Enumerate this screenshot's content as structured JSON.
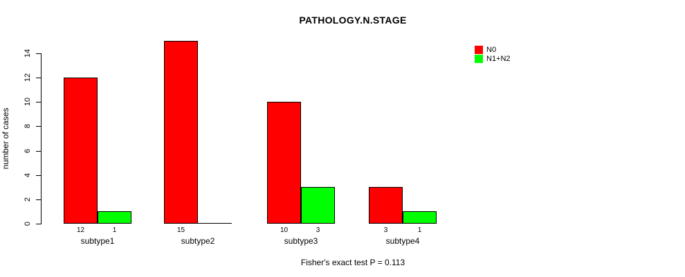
{
  "title": "PATHOLOGY.N.STAGE",
  "ylabel": "number of cases",
  "footnote": "Fisher's exact test P = 0.113",
  "chart_data": {
    "type": "bar",
    "grouped": true,
    "title": "PATHOLOGY.N.STAGE",
    "xlabel": "",
    "ylabel": "number of cases",
    "categories": [
      "subtype1",
      "subtype2",
      "subtype3",
      "subtype4"
    ],
    "series": [
      {
        "name": "N0",
        "color": "#FF0000",
        "values": [
          12,
          15,
          10,
          3
        ]
      },
      {
        "name": "N1+N2",
        "color": "#00FF00",
        "values": [
          1,
          0,
          3,
          1
        ]
      }
    ],
    "bar_value_labels_shown": [
      "12",
      "1",
      "15",
      "10",
      "3",
      "3",
      "1"
    ],
    "yticks": [
      0,
      2,
      4,
      6,
      8,
      10,
      12,
      14
    ],
    "ylim": [
      0,
      15
    ],
    "grid": false,
    "legend_position": "top-right",
    "bar_border_color": "#000000",
    "annotation": "Fisher's exact test P = 0.113"
  }
}
